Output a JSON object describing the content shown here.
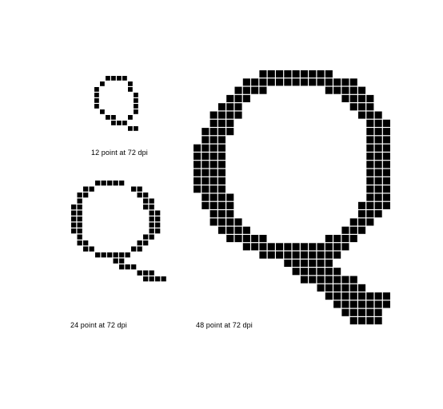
{
  "figure": {
    "pixel_color": "#000000",
    "background": "#ffffff",
    "glyphs": [
      {
        "name": "q-12pt",
        "caption": "12 point at 72 dpi",
        "rows": [
          "..####...",
          ".#....#..",
          "#.....#..",
          "#......#.",
          "#......#.",
          "#......#.",
          ".#.....#.",
          "..##..#..",
          "...###...",
          "......##."
        ]
      },
      {
        "name": "q-24pt",
        "caption": "24 point at 72 dpi",
        "rows": [
          "....#####.......",
          "..##......##....",
          ".##........##...",
          ".#..........##..",
          "##..........##..",
          "##...........##.",
          "##...........##.",
          "##...........##.",
          "##...........##.",
          ".#..........##..",
          ".##........##...",
          "..##......##....",
          "....######......",
          ".......##.......",
          "........###.....",
          "...........###..",
          "............####"
        ]
      },
      {
        "name": "q-48pt",
        "caption": "48 point at 72 dpi",
        "rows": [
          "........#########.......",
          "......##############....",
          ".....####.......#####...",
          "....###...........####..",
          "...###.............###..",
          "..####..............###.",
          "..###................###",
          ".####................###",
          ".###.................###",
          "####.................###",
          "####.................###",
          "####.................###",
          "####.................###",
          "####.................###",
          "####.................###",
          ".####................###",
          ".####...............####",
          "..###...............###.",
          "..####.............###..",
          "...####...........###...",
          "....#####.......####....",
          "......#############.....",
          "........##########......",
          "...........######.......",
          "............######......",
          ".............#######....",
          "...............######...",
          "................########",
          ".................#######",
          "..................#####.",
          "...................####."
        ]
      }
    ]
  }
}
